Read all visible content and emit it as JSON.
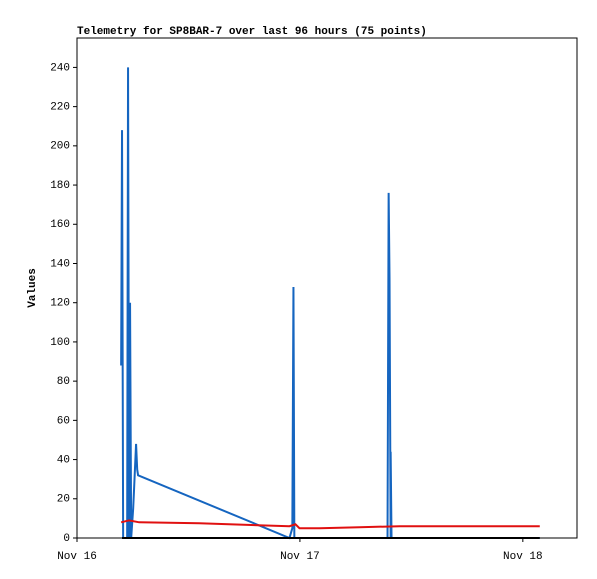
{
  "chart_data": {
    "type": "line",
    "title": "Telemetry for SP8BAR-7 over last 96 hours (75 points)",
    "y_label": "Values",
    "xlim": [
      16.0,
      18.243
    ],
    "xticks": [
      {
        "value": 16,
        "label": "Nov 16"
      },
      {
        "value": 17,
        "label": "Nov 17"
      },
      {
        "value": 18,
        "label": "Nov 18"
      }
    ],
    "ylim": [
      0,
      255
    ],
    "yticks": [
      0,
      20,
      40,
      60,
      80,
      100,
      120,
      140,
      160,
      180,
      200,
      220,
      240
    ],
    "grid": false,
    "series": [
      {
        "color": "#1565c0",
        "x": [
          16.198,
          16.202,
          16.207,
          16.225,
          16.229,
          16.234,
          16.238,
          16.243,
          16.252,
          16.256,
          16.265,
          16.27,
          16.274,
          16.953,
          16.966,
          16.971,
          16.975,
          17.393,
          17.398,
          17.402,
          17.407,
          17.407,
          17.411,
          18.076
        ],
        "values": [
          88,
          208,
          0,
          0,
          240,
          0,
          120,
          0,
          15,
          25,
          48,
          35,
          32,
          0,
          5,
          128,
          0,
          0,
          176,
          132,
          0,
          44,
          0,
          0
        ]
      },
      {
        "color": "#e01010",
        "x": [
          16.198,
          16.234,
          16.279,
          16.548,
          16.953,
          16.98,
          16.998,
          17.088,
          17.267,
          17.447,
          18.076
        ],
        "values": [
          8,
          9,
          8,
          7.5,
          6,
          7,
          5,
          5,
          5.5,
          6,
          6
        ]
      },
      {
        "color": "#000000",
        "x": [
          16.202,
          18.076
        ],
        "values": [
          0,
          0
        ]
      }
    ]
  }
}
